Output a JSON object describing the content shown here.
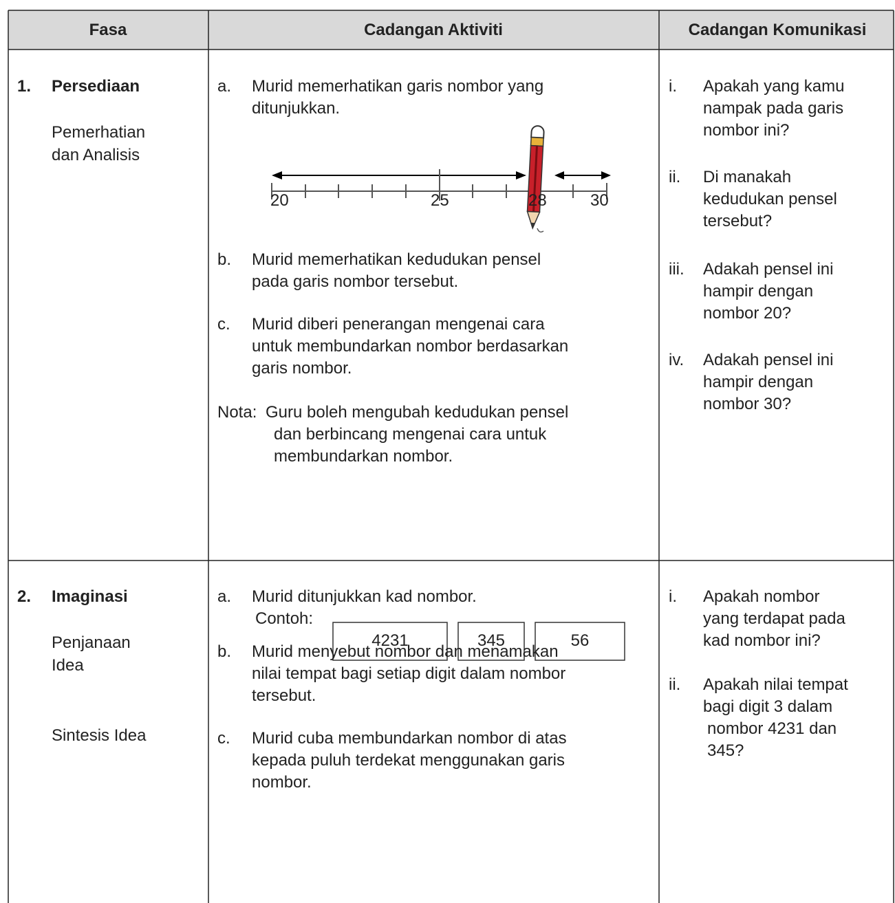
{
  "header": {
    "columns": [
      "Fasa",
      "Cadangan Aktiviti",
      "Cadangan Komunikasi"
    ]
  },
  "rows": [
    {
      "number": "1.",
      "phase": "Persediaan",
      "subphases": [
        [
          "Pemerhatian",
          "dan Analisis"
        ]
      ],
      "activities": [
        {
          "marker": "a.",
          "lines": [
            "Murid memerhatikan garis nombor yang",
            "ditunjukkan."
          ]
        },
        {
          "marker": "b.",
          "lines": [
            "Murid memerhatikan kedudukan pensel",
            "pada garis nombor tersebut."
          ]
        },
        {
          "marker": "c.",
          "lines": [
            "Murid diberi penerangan mengenai cara",
            "untuk membundarkan nombor berdasarkan",
            "garis nombor."
          ]
        }
      ],
      "number_line": [
        "20",
        "25",
        "28",
        "30"
      ],
      "note": {
        "label": "Nota:",
        "lines": [
          "Guru boleh mengubah kedudukan pensel",
          "dan berbincang mengenai cara untuk",
          "membundarkan nombor."
        ]
      },
      "communication": [
        {
          "marker": "i.",
          "lines": [
            "Apakah yang kamu",
            "nampak pada garis",
            "nombor ini?"
          ]
        },
        {
          "marker": "ii.",
          "lines": [
            "Di manakah",
            "kedudukan pensel",
            "tersebut?"
          ]
        },
        {
          "marker": "iii.",
          "lines": [
            "Adakah pensel ini",
            "hampir dengan",
            "nombor 20?"
          ]
        },
        {
          "marker": "iv.",
          "lines": [
            "Adakah pensel ini",
            "hampir dengan",
            "nombor 30?"
          ]
        }
      ]
    },
    {
      "number": "2.",
      "phase": "Imaginasi",
      "subphases": [
        [
          "Penjanaan",
          "Idea"
        ],
        [
          "Sintesis Idea"
        ]
      ],
      "activities": [
        {
          "marker": "a.",
          "lines": [
            "Murid ditunjukkan kad nombor."
          ]
        },
        {
          "marker": "b.",
          "lines": [
            "Murid menyebut nombor dan menamakan",
            "nilai tempat bagi setiap digit dalam nombor",
            "tersebut."
          ]
        },
        {
          "marker": "c.",
          "lines": [
            "Murid cuba membundarkan nombor di atas",
            "kepada puluh terdekat menggunakan garis",
            "nombor."
          ]
        }
      ],
      "example_label": "Contoh:",
      "cards": [
        "4231",
        "345",
        "56"
      ],
      "communication": [
        {
          "marker": "i.",
          "lines": [
            "Apakah nombor",
            "yang terdapat pada",
            "kad nombor ini?"
          ]
        },
        {
          "marker": "ii.",
          "lines": [
            "Apakah nilai tempat",
            "bagi digit 3 dalam",
            "nombor 4231 dan",
            "345?"
          ]
        }
      ]
    }
  ]
}
